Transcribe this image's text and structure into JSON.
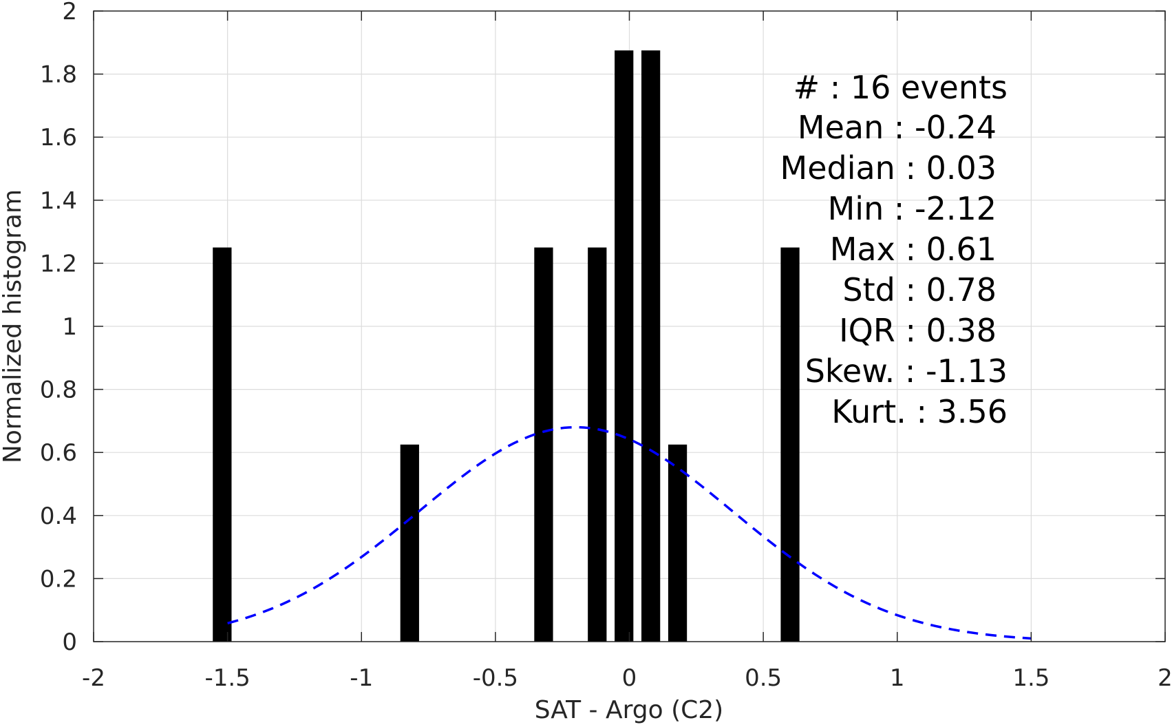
{
  "chart_data": {
    "type": "bar",
    "xlabel": "SAT - Argo (C2)",
    "ylabel": "Normalized histogram",
    "xlim": [
      -2,
      2
    ],
    "ylim": [
      0,
      2
    ],
    "grid": true,
    "xticks": [
      -2,
      -1.5,
      -1,
      -0.5,
      0,
      0.5,
      1,
      1.5,
      2
    ],
    "xtick_labels": [
      "-2",
      "-1.5",
      "-1",
      "-0.5",
      "0",
      "0.5",
      "1",
      "1.5",
      "2"
    ],
    "yticks": [
      0,
      0.2,
      0.4,
      0.6,
      0.8,
      1,
      1.2,
      1.4,
      1.6,
      1.8,
      2
    ],
    "ytick_labels": [
      "0",
      "0.2",
      "0.4",
      "0.6",
      "0.8",
      "1",
      "1.2",
      "1.4",
      "1.6",
      "1.8",
      "2"
    ],
    "bar_color": "#000000",
    "bar_width": 0.07,
    "bars": [
      {
        "x": -1.52,
        "value": 1.25
      },
      {
        "x": -0.82,
        "value": 0.625
      },
      {
        "x": -0.32,
        "value": 1.25
      },
      {
        "x": -0.12,
        "value": 1.25
      },
      {
        "x": -0.02,
        "value": 1.875
      },
      {
        "x": 0.08,
        "value": 1.875
      },
      {
        "x": 0.18,
        "value": 0.625
      },
      {
        "x": 0.6,
        "value": 1.25
      }
    ],
    "curve": {
      "style": "dashed",
      "color": "#0000ff",
      "x_range": [
        -1.5,
        1.5
      ],
      "peak_x": -0.2,
      "peak_y": 0.68
    },
    "stats": [
      {
        "label": "#  : 16 events"
      },
      {
        "label": "Mean : -0.24"
      },
      {
        "label": "Median : 0.03"
      },
      {
        "label": "Min : -2.12"
      },
      {
        "label": "Max : 0.61"
      },
      {
        "label": "Std : 0.78"
      },
      {
        "label": "IQR : 0.38"
      },
      {
        "label": "Skew. : -1.13"
      },
      {
        "label": "Kurt. : 3.56"
      }
    ]
  }
}
